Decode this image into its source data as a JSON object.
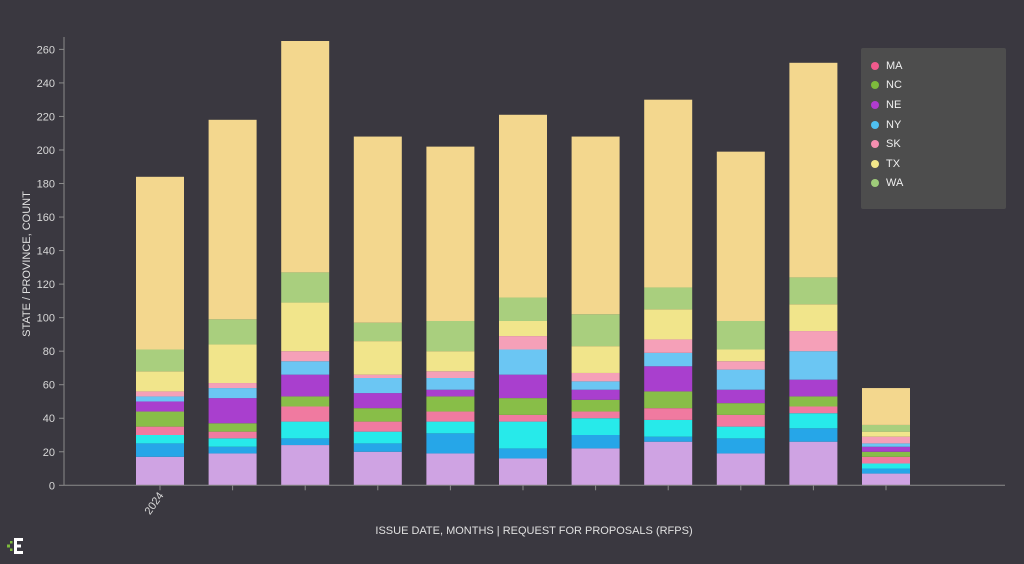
{
  "chart_data": {
    "type": "bar",
    "stacked": true,
    "categories": [
      "2024",
      "",
      "",
      "",
      "",
      "",
      "",
      "",
      "",
      "",
      ""
    ],
    "xlabel": "ISSUE DATE, MONTHS | REQUEST FOR PROPOSALS (RFPS)",
    "ylabel": "STATE / PROVINCE, COUNT",
    "ylim": [
      0,
      265
    ],
    "yticks": [
      0,
      20,
      40,
      60,
      80,
      100,
      120,
      140,
      160,
      180,
      200,
      220,
      240,
      260
    ],
    "legend_position": "top-right",
    "segments": [
      {
        "color": "#cfa3e3",
        "values": [
          17,
          19,
          24,
          20,
          19,
          16,
          22,
          26,
          19,
          26,
          7
        ]
      },
      {
        "color": "#26a6e8",
        "values": [
          8,
          4,
          4,
          5,
          12,
          6,
          8,
          3,
          9,
          8,
          3
        ]
      },
      {
        "color": "#27eaea",
        "values": [
          5,
          5,
          10,
          7,
          7,
          16,
          10,
          10,
          7,
          9,
          3
        ]
      },
      {
        "color": "#f07aa0",
        "values": [
          5,
          4,
          9,
          6,
          6,
          4,
          4,
          7,
          7,
          4,
          4
        ]
      },
      {
        "color": "#88be48",
        "values": [
          9,
          5,
          6,
          8,
          9,
          10,
          7,
          10,
          7,
          6,
          3
        ]
      },
      {
        "color": "#a93fce",
        "values": [
          6,
          15,
          13,
          9,
          4,
          14,
          6,
          15,
          8,
          10,
          3
        ]
      },
      {
        "color": "#6bc6f3",
        "values": [
          3,
          6,
          8,
          9,
          7,
          15,
          5,
          8,
          12,
          17,
          2
        ]
      },
      {
        "color": "#f5a0b8",
        "values": [
          3,
          3,
          6,
          2,
          4,
          8,
          5,
          8,
          5,
          12,
          4
        ]
      },
      {
        "color": "#f1e58b",
        "values": [
          12,
          23,
          29,
          20,
          12,
          9,
          16,
          18,
          7,
          16,
          3
        ]
      },
      {
        "color": "#a9cf7e",
        "values": [
          13,
          15,
          18,
          11,
          18,
          14,
          19,
          13,
          17,
          16,
          4
        ]
      },
      {
        "color": "#f3d78e",
        "values": [
          103,
          119,
          138,
          111,
          104,
          109,
          106,
          112,
          101,
          128,
          22
        ]
      }
    ],
    "legend": [
      {
        "label": "MA",
        "color": "#f05a8c"
      },
      {
        "label": "NC",
        "color": "#7dbb3c"
      },
      {
        "label": "NE",
        "color": "#b03ccf"
      },
      {
        "label": "NY",
        "color": "#4fc0f0"
      },
      {
        "label": "SK",
        "color": "#f58fb0"
      },
      {
        "label": "TX",
        "color": "#f2e68a"
      },
      {
        "label": "WA",
        "color": "#9fcc7a"
      }
    ]
  }
}
